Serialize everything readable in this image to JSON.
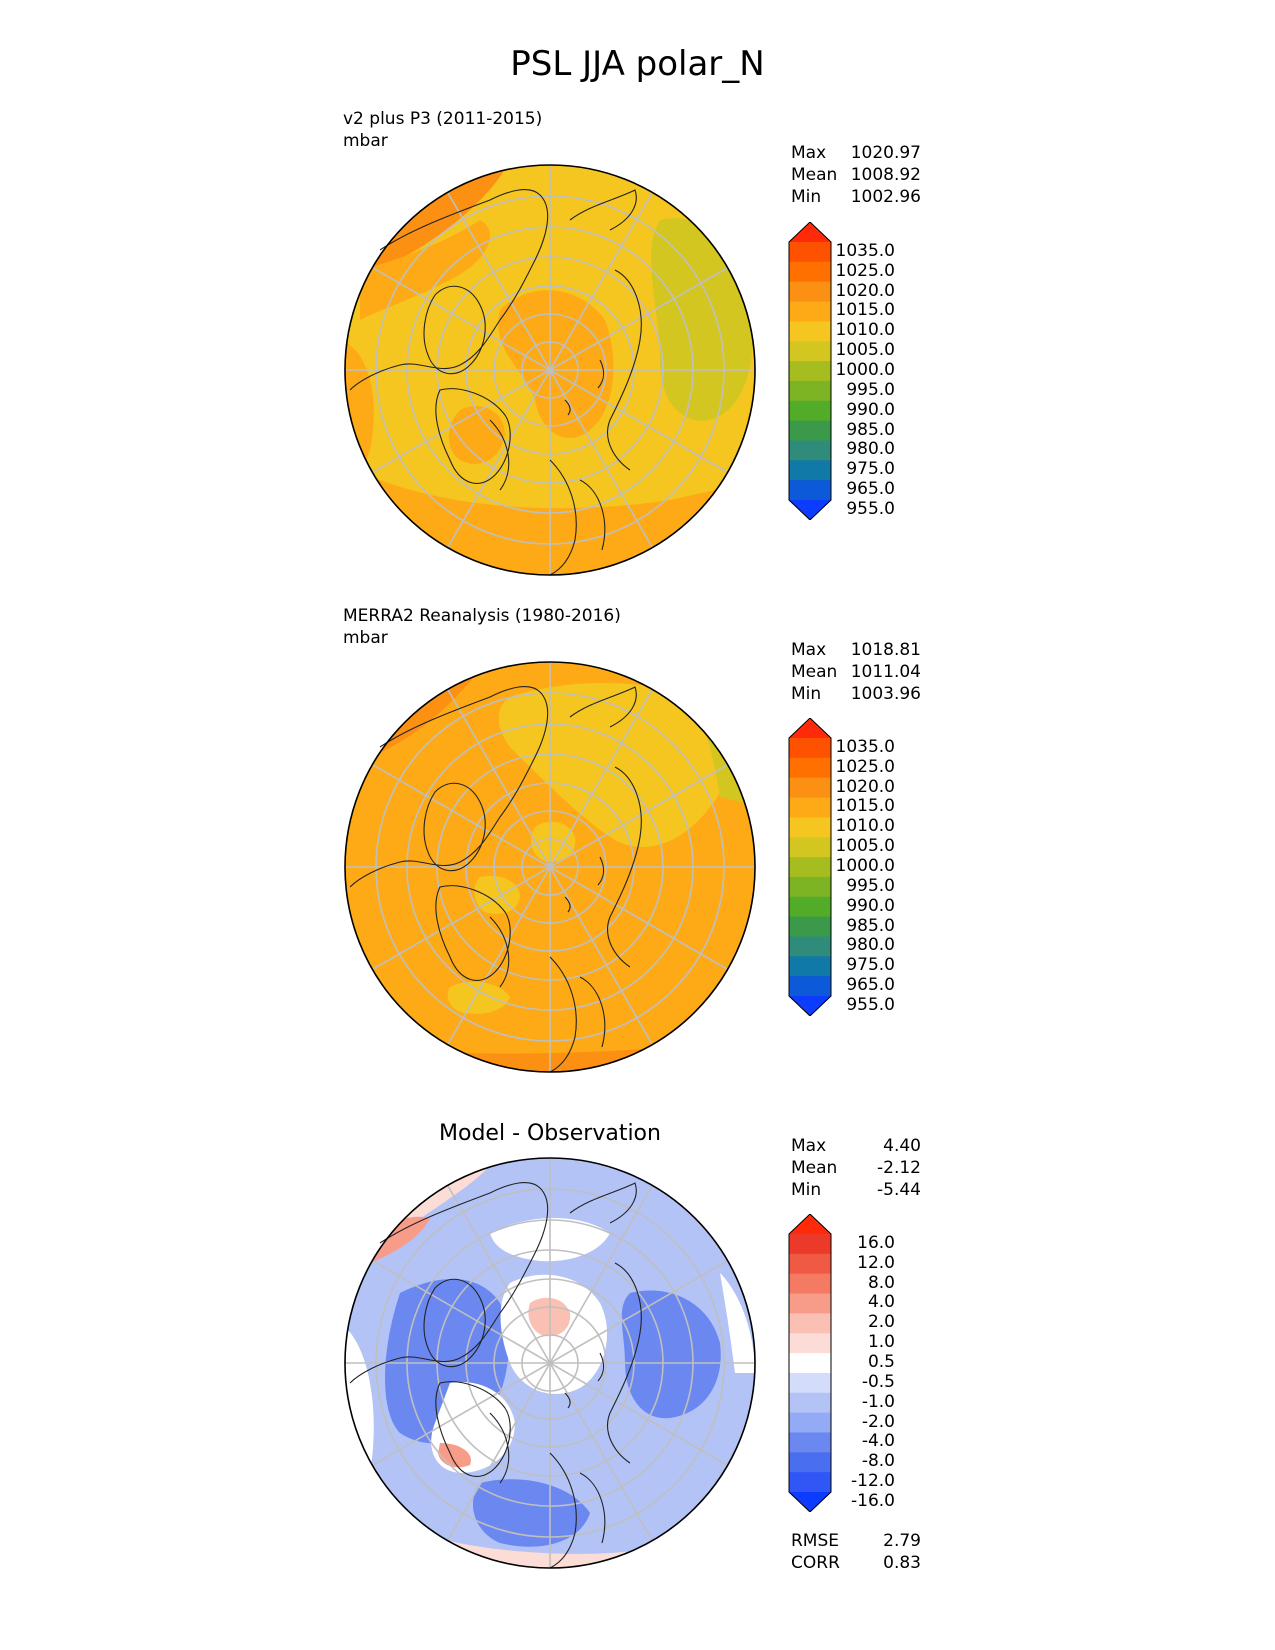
{
  "title": "PSL JJA polar_N",
  "panels": [
    {
      "title": "v2 plus P3 (2011-2015)",
      "units": "mbar",
      "stats": [
        {
          "label": "Max",
          "value": "1020.97"
        },
        {
          "label": "Mean",
          "value": "1008.92"
        },
        {
          "label": "Min",
          "value": "1002.96"
        }
      ]
    },
    {
      "title": "MERRA2 Reanalysis (1980-2016)",
      "units": "mbar",
      "stats": [
        {
          "label": "Max",
          "value": "1018.81"
        },
        {
          "label": "Mean",
          "value": "1011.04"
        },
        {
          "label": "Min",
          "value": "1003.96"
        }
      ]
    },
    {
      "title": "Model - Observation",
      "stats": [
        {
          "label": "Max",
          "value": "4.40"
        },
        {
          "label": "Mean",
          "value": "-2.12"
        },
        {
          "label": "Min",
          "value": "-5.44"
        }
      ],
      "metrics": [
        {
          "label": "RMSE",
          "value": "2.79"
        },
        {
          "label": "CORR",
          "value": "0.83"
        }
      ]
    }
  ],
  "chart_data": [
    {
      "type": "heatmap",
      "projection": "north polar stereographic",
      "field": "sea level pressure",
      "colorbar": {
        "extend": "both",
        "levels": [
          955,
          965,
          975,
          980,
          985,
          990,
          995,
          1000,
          1005,
          1010,
          1015,
          1020,
          1025,
          1035
        ],
        "tick_labels": [
          "1035.0",
          "1025.0",
          "1020.0",
          "1015.0",
          "1010.0",
          "1005.0",
          "1000.0",
          "995.0",
          "990.0",
          "985.0",
          "980.0",
          "975.0",
          "965.0",
          "955.0"
        ],
        "colors": [
          "#0c3cff",
          "#0d5ad8",
          "#1179a8",
          "#2f8c7a",
          "#3a9a4a",
          "#52ac27",
          "#7db424",
          "#a6bd20",
          "#d3c620",
          "#f5c620",
          "#fdaa16",
          "#fb9012",
          "#ff7000",
          "#ff5200",
          "#ff2a0a"
        ]
      },
      "dominant_levels": [
        "1005-1010",
        "1010-1015",
        "1015-1020"
      ]
    },
    {
      "type": "heatmap",
      "projection": "north polar stereographic",
      "field": "sea level pressure",
      "colorbar": {
        "extend": "both",
        "levels": [
          955,
          965,
          975,
          980,
          985,
          990,
          995,
          1000,
          1005,
          1010,
          1015,
          1020,
          1025,
          1035
        ],
        "tick_labels": [
          "1035.0",
          "1025.0",
          "1020.0",
          "1015.0",
          "1010.0",
          "1005.0",
          "1000.0",
          "995.0",
          "990.0",
          "985.0",
          "980.0",
          "975.0",
          "965.0",
          "955.0"
        ],
        "colors": [
          "#0c3cff",
          "#0d5ad8",
          "#1179a8",
          "#2f8c7a",
          "#3a9a4a",
          "#52ac27",
          "#7db424",
          "#a6bd20",
          "#d3c620",
          "#f5c620",
          "#fdaa16",
          "#fb9012",
          "#ff7000",
          "#ff5200",
          "#ff2a0a"
        ]
      },
      "dominant_levels": [
        "1010-1015",
        "1015-1020"
      ]
    },
    {
      "type": "heatmap",
      "projection": "north polar stereographic",
      "field": "sea level pressure difference",
      "colorbar": {
        "extend": "both",
        "levels": [
          -16,
          -12,
          -8,
          -4,
          -2,
          -1,
          -0.5,
          0.5,
          1,
          2,
          4,
          8,
          12,
          16
        ],
        "tick_labels": [
          "16.0",
          "12.0",
          "8.0",
          "4.0",
          "2.0",
          "1.0",
          "0.5",
          "-0.5",
          "-1.0",
          "-2.0",
          "-4.0",
          "-8.0",
          "-12.0",
          "-16.0"
        ],
        "colors": [
          "#0c3cff",
          "#3057f5",
          "#4a6ef0",
          "#6a88f0",
          "#93aaf4",
          "#b3c3f6",
          "#d3dcfa",
          "#ffffff",
          "#fbdcd6",
          "#fac0b4",
          "#f89c8a",
          "#f47a64",
          "#f05a44",
          "#ec3a2a",
          "#ff2a0a"
        ]
      },
      "dominant_levels": [
        "-4.0 to -2.0",
        "-2.0 to -1.0",
        "-0.5 to 0.5"
      ]
    }
  ]
}
